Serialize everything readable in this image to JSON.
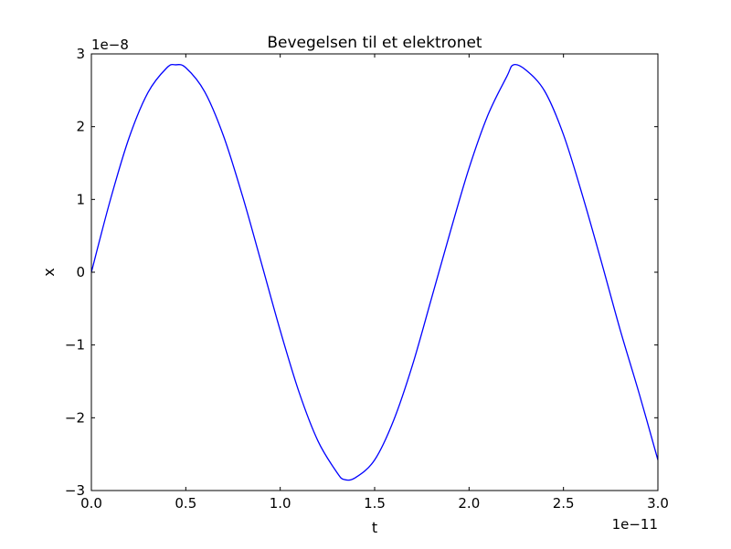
{
  "chart_data": {
    "type": "line",
    "title": "Bevegelsen til et elektronet",
    "xlabel": "t",
    "ylabel": "x",
    "x_offset_text": "1e−11",
    "y_offset_text": "1e−8",
    "x_scale": 1e-11,
    "y_scale": 1e-08,
    "xlim": [
      0,
      3e-11
    ],
    "ylim": [
      -3e-08,
      3e-08
    ],
    "x_ticks": [
      0,
      5e-12,
      1e-11,
      1.5e-11,
      2e-11,
      2.5e-11,
      3e-11
    ],
    "x_tick_labels": [
      "0.0",
      "0.5",
      "1.0",
      "1.5",
      "2.0",
      "2.5",
      "3.0"
    ],
    "y_ticks": [
      -3e-08,
      -2e-08,
      -1e-08,
      0,
      1e-08,
      2e-08,
      3e-08
    ],
    "y_tick_labels": [
      "−3",
      "−2",
      "−1",
      "0",
      "1",
      "2",
      "3"
    ],
    "grid": false,
    "series": [
      {
        "color": "#0000ff",
        "x": [
          0,
          1e-12,
          2e-12,
          3e-12,
          4e-12,
          4.45e-12,
          5e-12,
          6e-12,
          7e-12,
          8e-12,
          9e-12,
          1e-11,
          1.1e-11,
          1.2e-11,
          1.3e-11,
          1.34e-11,
          1.4e-11,
          1.5e-11,
          1.6e-11,
          1.7e-11,
          1.8e-11,
          1.9e-11,
          2e-11,
          2.1e-11,
          2.2e-11,
          2.235e-11,
          2.3e-11,
          2.4e-11,
          2.5e-11,
          2.6e-11,
          2.7e-11,
          2.8e-11,
          2.9e-11,
          3e-11
        ],
        "y": [
          0,
          9.9e-09,
          1.85e-08,
          2.47e-08,
          2.81e-08,
          2.85e-08,
          2.81e-08,
          2.48e-08,
          1.87e-08,
          1.05e-08,
          1.3e-09,
          -8e-09,
          -1.65e-08,
          -2.32e-08,
          -2.75e-08,
          -2.85e-08,
          -2.82e-08,
          -2.58e-08,
          -2.04e-08,
          -1.28e-08,
          -3.7e-09,
          5.5e-09,
          1.43e-08,
          2.16e-08,
          2.69e-08,
          2.85e-08,
          2.78e-08,
          2.49e-08,
          1.89e-08,
          1.06e-08,
          1.5e-09,
          -7.9e-09,
          -1.66e-08,
          -2.58e-08
        ]
      }
    ]
  }
}
